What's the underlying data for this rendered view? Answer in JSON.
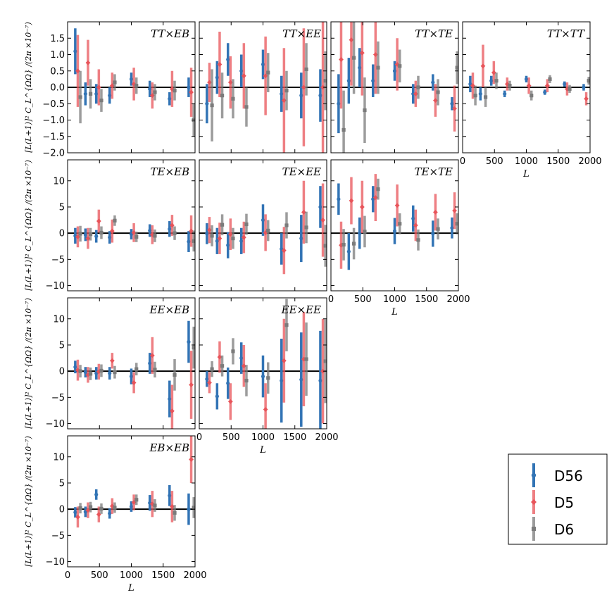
{
  "chart_data": {
    "type": "scatter",
    "description_style": "grid of error-bar panels",
    "xlabel": "L",
    "ylabel": "[L(L+1)]² C_L^{ΩΩ} /(2π ×10⁻⁷)",
    "xlim": [
      0,
      2000
    ],
    "xticks": [
      "0",
      "500",
      "1000",
      "1500",
      "2000"
    ],
    "colors": {
      "D56": "#3274b5",
      "D5": "#e8545a",
      "D6": "#7b7b7b",
      "zero_line": "#000000"
    },
    "legend": {
      "placement": "bottom-right",
      "entries": [
        "D56",
        "D5",
        "D6"
      ]
    },
    "bins": [
      120,
      280,
      450,
      660,
      1000,
      1290,
      1600,
      1900
    ],
    "offsets": {
      "D56": 0,
      "D5": 40,
      "D6": 80
    },
    "panels": [
      {
        "id": "tt_eb",
        "title": "TT×EB",
        "row": 0,
        "col": 0,
        "ylim": [
          -2.0,
          2.0
        ],
        "yticks": [
          "−2.0",
          "−1.5",
          "−1.0",
          "−0.5",
          "0.0",
          "0.5",
          "1.0",
          "1.5"
        ],
        "series": [
          {
            "name": "D56",
            "values": [
              1.1,
              -0.2,
              -0.2,
              -0.25,
              0.25,
              -0.05,
              -0.35,
              0.0
            ],
            "errors": [
              0.7,
              0.35,
              0.3,
              0.25,
              0.2,
              0.25,
              0.2,
              0.3
            ]
          },
          {
            "name": "D5",
            "values": [
              0.5,
              0.75,
              0.0,
              0.05,
              0.1,
              -0.25,
              -0.05,
              -0.15
            ],
            "errors": [
              1.1,
              0.7,
              0.55,
              0.4,
              0.5,
              0.4,
              0.55,
              0.75
            ]
          },
          {
            "name": "D6",
            "values": [
              -0.3,
              -0.2,
              -0.4,
              0.15,
              0.05,
              -0.15,
              -0.1,
              -1.0
            ],
            "errors": [
              0.8,
              0.45,
              0.35,
              0.25,
              0.25,
              0.25,
              0.3,
              0.5
            ]
          }
        ]
      },
      {
        "id": "tt_ee",
        "title": "TT×EE",
        "row": 0,
        "col": 1,
        "ylim": [
          -2.0,
          2.0
        ],
        "yticks": [],
        "series": [
          {
            "name": "D56",
            "values": [
              -0.5,
              0.3,
              0.85,
              0.5,
              0.7,
              -0.2,
              -0.25,
              -0.25
            ],
            "errors": [
              0.6,
              0.5,
              0.5,
              0.5,
              0.45,
              0.55,
              0.7,
              0.8
            ]
          },
          {
            "name": "D5",
            "values": [
              0.15,
              0.7,
              0.15,
              0.35,
              0.35,
              -0.4,
              0.0,
              0.0
            ],
            "errors": [
              0.6,
              1.0,
              0.8,
              1.0,
              1.2,
              1.6,
              1.8,
              2.2
            ]
          },
          {
            "name": "D6",
            "values": [
              -0.55,
              -0.25,
              -0.35,
              -0.6,
              0.45,
              -0.1,
              0.55,
              0.2
            ],
            "errors": [
              1.1,
              0.7,
              0.6,
              0.6,
              0.6,
              0.6,
              0.8,
              0.9
            ]
          }
        ]
      },
      {
        "id": "tt_te",
        "title": "TT×TE",
        "row": 0,
        "col": 2,
        "ylim": [
          -2.0,
          2.0
        ],
        "yticks": [],
        "series": [
          {
            "name": "D56",
            "values": [
              -0.5,
              0.2,
              0.6,
              0.2,
              0.5,
              -0.2,
              0.15,
              -0.5
            ],
            "errors": [
              0.9,
              0.7,
              0.6,
              0.5,
              0.3,
              0.3,
              0.25,
              0.2
            ]
          },
          {
            "name": "D5",
            "values": [
              0.85,
              1.45,
              1.05,
              1.0,
              0.7,
              -0.2,
              -0.4,
              -0.65
            ],
            "errors": [
              1.5,
              1.4,
              1.3,
              1.2,
              0.8,
              0.4,
              0.5,
              0.7
            ]
          },
          {
            "name": "D6",
            "values": [
              -1.3,
              0.9,
              -0.7,
              0.6,
              0.65,
              0.0,
              -0.15,
              0.6
            ],
            "errors": [
              1.2,
              1.1,
              1.0,
              0.8,
              0.5,
              0.35,
              0.4,
              0.5
            ]
          }
        ]
      },
      {
        "id": "tt_tt",
        "title": "TT×TT",
        "row": 0,
        "col": 3,
        "ylim": [
          -2.0,
          2.0
        ],
        "yticks": [],
        "series": [
          {
            "name": "D56",
            "values": [
              0.1,
              -0.2,
              0.2,
              -0.2,
              0.25,
              -0.15,
              0.1,
              0.0
            ],
            "errors": [
              0.25,
              0.2,
              0.15,
              0.1,
              0.1,
              0.08,
              0.08,
              0.1
            ]
          },
          {
            "name": "D5",
            "values": [
              0.05,
              0.65,
              0.45,
              0.1,
              0.05,
              0.05,
              -0.05,
              -0.35
            ],
            "errors": [
              0.4,
              0.65,
              0.35,
              0.2,
              0.25,
              0.2,
              0.2,
              0.2
            ]
          },
          {
            "name": "D6",
            "values": [
              -0.25,
              -0.3,
              0.2,
              0.05,
              -0.25,
              0.25,
              -0.05,
              0.2
            ],
            "errors": [
              0.3,
              0.3,
              0.25,
              0.15,
              0.15,
              0.12,
              0.12,
              0.12
            ]
          }
        ]
      },
      {
        "id": "te_eb",
        "title": "TE×EB",
        "row": 1,
        "col": 0,
        "ylim": [
          -11,
          14
        ],
        "yticks": [
          "−10",
          "−5",
          "0",
          "5",
          "10"
        ],
        "series": [
          {
            "name": "D56",
            "values": [
              -0.5,
              -0.3,
              -0.6,
              -0.8,
              -0.2,
              0.5,
              0.8,
              -1.6
            ],
            "errors": [
              1.5,
              1.2,
              1.2,
              1.2,
              1.0,
              1.2,
              1.5,
              2.0
            ]
          },
          {
            "name": "D5",
            "values": [
              -0.7,
              -1.0,
              2.3,
              0.4,
              0.1,
              -0.3,
              1.5,
              0.4
            ],
            "errors": [
              2.0,
              2.0,
              2.2,
              2.2,
              1.8,
              1.8,
              2.0,
              3.0
            ]
          },
          {
            "name": "D6",
            "values": [
              -0.1,
              -0.2,
              0.1,
              2.4,
              -0.7,
              -0.5,
              0.0,
              -1.5
            ],
            "errors": [
              1.5,
              1.2,
              1.2,
              1.0,
              1.0,
              1.2,
              1.3,
              2.0
            ]
          }
        ]
      },
      {
        "id": "te_ee",
        "title": "TE×EE",
        "row": 1,
        "col": 1,
        "ylim": [
          -11,
          14
        ],
        "yticks": [],
        "series": [
          {
            "name": "D56",
            "values": [
              -0.1,
              -1.5,
              -2.3,
              -1.5,
              2.5,
              -3.0,
              -1.0,
              5.0
            ],
            "errors": [
              2.0,
              2.5,
              2.5,
              2.5,
              3.0,
              3.0,
              4.5,
              4.0
            ]
          },
          {
            "name": "D5",
            "values": [
              0.6,
              -1.0,
              -0.2,
              -0.8,
              0.1,
              -3.3,
              4.0,
              2.5
            ],
            "errors": [
              2.5,
              3.0,
              3.0,
              3.0,
              3.5,
              4.5,
              6.0,
              7.0
            ]
          },
          {
            "name": "D6",
            "values": [
              -0.5,
              1.6,
              -1.0,
              1.7,
              0.5,
              1.5,
              1.1,
              -2.4
            ],
            "errors": [
              2.0,
              2.0,
              2.0,
              2.0,
              2.0,
              2.5,
              3.0,
              4.0
            ]
          }
        ]
      },
      {
        "id": "te_te",
        "title": "TE×TE",
        "row": 1,
        "col": 2,
        "ylim": [
          -11,
          14
        ],
        "yticks": [],
        "series": [
          {
            "name": "D56",
            "values": [
              6.5,
              -3.5,
              0.0,
              6.5,
              0.4,
              2.8,
              -0.1,
              1.0
            ],
            "errors": [
              3.0,
              3.5,
              3.0,
              2.5,
              2.5,
              2.5,
              2.5,
              2.0
            ]
          },
          {
            "name": "D5",
            "values": [
              -2.3,
              6.2,
              5.0,
              6.8,
              5.3,
              1.5,
              4.0,
              4.3
            ],
            "errors": [
              4.5,
              4.5,
              5.0,
              4.5,
              4.0,
              3.0,
              3.5,
              3.5
            ]
          },
          {
            "name": "D6",
            "values": [
              -2.2,
              -2.0,
              0.3,
              8.4,
              1.8,
              -1.3,
              0.8,
              1.8
            ],
            "errors": [
              3.0,
              3.0,
              3.0,
              2.0,
              2.0,
              2.0,
              2.0,
              2.0
            ]
          }
        ]
      },
      {
        "id": "ee_eb",
        "title": "EE×EB",
        "row": 2,
        "col": 0,
        "ylim": [
          -11,
          14
        ],
        "yticks": [
          "−10",
          "−5",
          "0",
          "5",
          "10"
        ],
        "series": [
          {
            "name": "D56",
            "values": [
              0.8,
              -0.2,
              -0.4,
              -0.4,
              -1.0,
              1.5,
              -5.3,
              5.6
            ],
            "errors": [
              1.2,
              1.0,
              1.2,
              1.2,
              1.5,
              2.0,
              3.5,
              4.0
            ]
          },
          {
            "name": "D5",
            "values": [
              0.2,
              -0.7,
              -0.1,
              2.0,
              -2.2,
              3.0,
              -7.6,
              -2.6
            ],
            "errors": [
              2.0,
              1.5,
              1.5,
              1.5,
              2.0,
              3.5,
              5.0,
              6.5
            ]
          },
          {
            "name": "D6",
            "values": [
              0.0,
              -0.5,
              0.1,
              -0.2,
              0.4,
              0.3,
              -0.7,
              4.5
            ],
            "errors": [
              1.2,
              1.2,
              1.2,
              1.2,
              1.2,
              1.5,
              3.0,
              4.0
            ]
          }
        ]
      },
      {
        "id": "ee_ee",
        "title": "EE×EE",
        "row": 2,
        "col": 1,
        "ylim": [
          -11,
          14
        ],
        "yticks": [],
        "series": [
          {
            "name": "D56",
            "values": [
              -1.5,
              -4.8,
              -2.3,
              2.5,
              -1.0,
              -1.8,
              -1.6,
              -1.8
            ],
            "errors": [
              1.5,
              2.5,
              3.0,
              3.0,
              4.0,
              8.0,
              9.0,
              9.5
            ]
          },
          {
            "name": "D5",
            "values": [
              -2.2,
              2.7,
              -5.8,
              1.0,
              -7.3,
              2.0,
              2.3,
              0.0
            ],
            "errors": [
              2.0,
              3.0,
              3.5,
              4.0,
              5.0,
              8.0,
              9.0,
              10.0
            ]
          },
          {
            "name": "D6",
            "values": [
              0.4,
              1.0,
              3.8,
              -1.8,
              -1.3,
              8.8,
              2.3,
              1.9
            ],
            "errors": [
              1.5,
              2.0,
              2.5,
              3.0,
              3.0,
              5.0,
              7.0,
              8.0
            ]
          }
        ]
      },
      {
        "id": "eb_eb",
        "title": "EB×EB",
        "row": 3,
        "col": 0,
        "ylim": [
          -11,
          14
        ],
        "yticks": [
          "−10",
          "−5",
          "0",
          "5",
          "10"
        ],
        "series": [
          {
            "name": "D56",
            "values": [
              -0.6,
              -0.5,
              2.8,
              -0.8,
              0.5,
              1.2,
              2.6,
              0.0
            ],
            "errors": [
              1.0,
              1.0,
              1.0,
              1.0,
              1.0,
              1.5,
              2.0,
              3.0
            ]
          },
          {
            "name": "D5",
            "values": [
              -1.5,
              -0.2,
              -1.0,
              0.6,
              1.3,
              1.0,
              0.5,
              9.5
            ],
            "errors": [
              2.0,
              1.5,
              1.5,
              1.5,
              1.5,
              2.5,
              3.0,
              4.5
            ]
          },
          {
            "name": "D6",
            "values": [
              0.2,
              0.4,
              0.1,
              0.3,
              1.8,
              0.7,
              -0.7,
              0.3
            ],
            "errors": [
              1.0,
              1.0,
              1.0,
              1.0,
              1.0,
              1.2,
              1.5,
              2.0
            ]
          }
        ]
      }
    ]
  }
}
